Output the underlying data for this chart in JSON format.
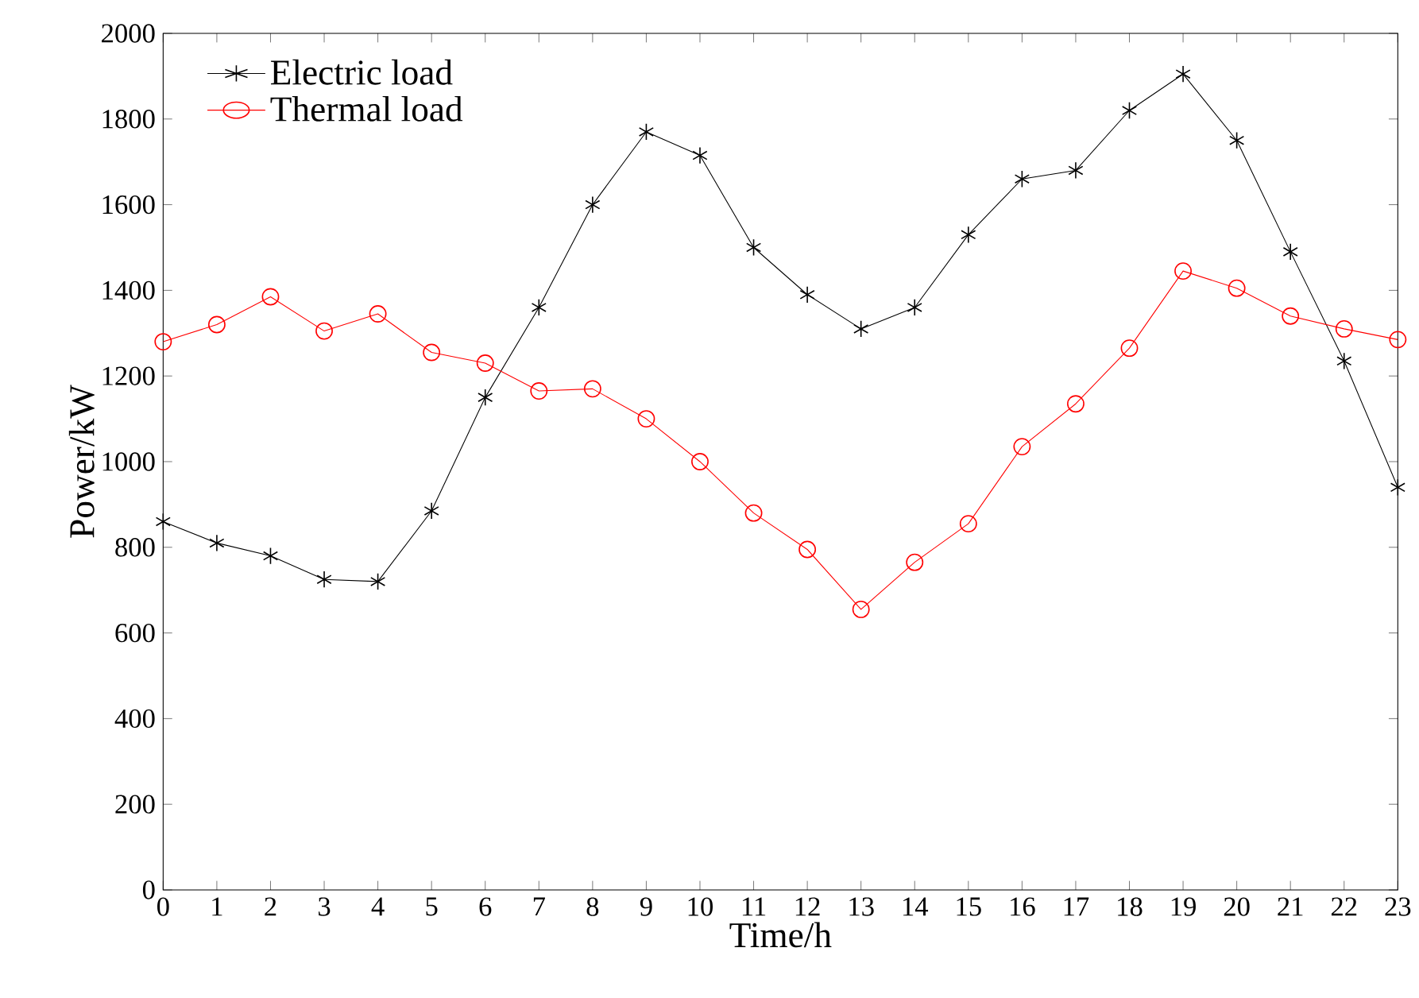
{
  "chart_data": {
    "type": "line",
    "xlabel": "Time/h",
    "ylabel": "Power/kW",
    "x": [
      0,
      1,
      2,
      3,
      4,
      5,
      6,
      7,
      8,
      9,
      10,
      11,
      12,
      13,
      14,
      15,
      16,
      17,
      18,
      19,
      20,
      21,
      22,
      23
    ],
    "series": [
      {
        "name": "Electric load",
        "color": "#000000",
        "marker": "cross",
        "values": [
          860,
          810,
          780,
          725,
          720,
          885,
          1150,
          1360,
          1600,
          1770,
          1715,
          1500,
          1390,
          1310,
          1360,
          1530,
          1660,
          1680,
          1820,
          1905,
          1750,
          1490,
          1235,
          940
        ]
      },
      {
        "name": "Thermal load",
        "color": "#ff0000",
        "marker": "circle",
        "values": [
          1280,
          1320,
          1385,
          1305,
          1345,
          1255,
          1230,
          1165,
          1170,
          1100,
          1000,
          880,
          795,
          655,
          765,
          855,
          1035,
          1135,
          1265,
          1445,
          1405,
          1340,
          1310,
          1285
        ]
      }
    ],
    "xlim": [
      0,
      23
    ],
    "xticks": [
      0,
      1,
      2,
      3,
      4,
      5,
      6,
      7,
      8,
      9,
      10,
      11,
      12,
      13,
      14,
      15,
      16,
      17,
      18,
      19,
      20,
      21,
      22,
      23
    ],
    "ylim": [
      0,
      2000
    ],
    "yticks": [
      0,
      200,
      400,
      600,
      800,
      1000,
      1200,
      1400,
      1600,
      1800,
      2000
    ],
    "grid": false,
    "legend": "top left",
    "line_style": "solid"
  }
}
